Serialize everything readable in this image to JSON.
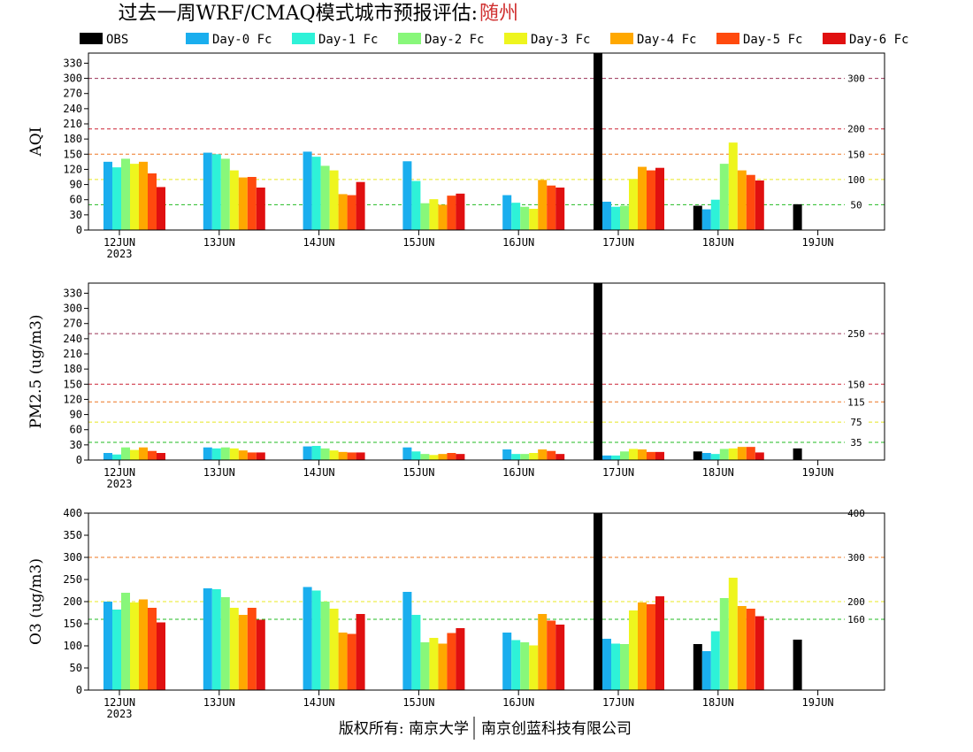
{
  "header": {
    "title_main": "过去一周WRF/CMAQ模式城市预报评估:",
    "title_city": "随州",
    "title_city_color": "#d03030"
  },
  "footer": {
    "left": "版权所有: 南京大学",
    "right": "南京创蓝科技有限公司"
  },
  "chart_data": [
    {
      "type": "bar",
      "ylabel": "AQI",
      "ylim": [
        0,
        350
      ],
      "yticks": [
        0,
        30,
        60,
        90,
        120,
        150,
        180,
        210,
        240,
        270,
        300,
        330
      ],
      "x_labels": [
        "12JUN",
        "13JUN",
        "14JUN",
        "15JUN",
        "16JUN",
        "17JUN",
        "18JUN",
        "19JUN"
      ],
      "x_sub": "2023",
      "legend": [
        "OBS",
        "Day-0 Fc",
        "Day-1 Fc",
        "Day-2 Fc",
        "Day-3 Fc",
        "Day-4 Fc",
        "Day-5 Fc",
        "Day-6 Fc"
      ],
      "colors": [
        "#000000",
        "#1aaeee",
        "#2ef2d8",
        "#88f77a",
        "#eef51e",
        "#ffa800",
        "#ff4a0e",
        "#e01010"
      ],
      "refs": [
        {
          "v": 300,
          "label": "300",
          "color": "#993355"
        },
        {
          "v": 200,
          "label": "200",
          "color": "#cc2233"
        },
        {
          "v": 150,
          "label": "150",
          "color": "#ee7722"
        },
        {
          "v": 100,
          "label": "100",
          "color": "#e8e822"
        },
        {
          "v": 50,
          "label": "50",
          "color": "#22bb22"
        }
      ],
      "series": [
        [
          null,
          null,
          null,
          null,
          null,
          350,
          48,
          51
        ],
        [
          135,
          153,
          155,
          136,
          69,
          56,
          41,
          null
        ],
        [
          124,
          150,
          145,
          97,
          54,
          46,
          60,
          null
        ],
        [
          141,
          141,
          127,
          53,
          46,
          48,
          131,
          null
        ],
        [
          131,
          118,
          118,
          61,
          42,
          101,
          173,
          null
        ],
        [
          135,
          104,
          71,
          50,
          99,
          125,
          118,
          null
        ],
        [
          112,
          105,
          69,
          68,
          88,
          118,
          109,
          null
        ],
        [
          85,
          84,
          95,
          72,
          84,
          123,
          98,
          null
        ]
      ]
    },
    {
      "type": "bar",
      "ylabel": "PM2.5 (ug/m3)",
      "ylim": [
        0,
        350
      ],
      "yticks": [
        0,
        30,
        60,
        90,
        120,
        150,
        180,
        210,
        240,
        270,
        300,
        330
      ],
      "x_labels": [
        "12JUN",
        "13JUN",
        "14JUN",
        "15JUN",
        "16JUN",
        "17JUN",
        "18JUN",
        "19JUN"
      ],
      "x_sub": "2023",
      "refs": [
        {
          "v": 250,
          "label": "250",
          "color": "#993355"
        },
        {
          "v": 150,
          "label": "150",
          "color": "#cc2233"
        },
        {
          "v": 115,
          "label": "115",
          "color": "#ee7722"
        },
        {
          "v": 75,
          "label": "75",
          "color": "#e8e822"
        },
        {
          "v": 35,
          "label": "35",
          "color": "#22bb22"
        }
      ],
      "series": [
        [
          null,
          null,
          null,
          null,
          null,
          350,
          17,
          23
        ],
        [
          14,
          25,
          27,
          25,
          21,
          9,
          14,
          null
        ],
        [
          11,
          23,
          28,
          17,
          12,
          9,
          12,
          null
        ],
        [
          25,
          25,
          23,
          12,
          12,
          17,
          22,
          null
        ],
        [
          20,
          23,
          19,
          10,
          14,
          22,
          23,
          null
        ],
        [
          25,
          19,
          16,
          12,
          21,
          21,
          26,
          null
        ],
        [
          18,
          15,
          15,
          14,
          18,
          16,
          26,
          null
        ],
        [
          14,
          15,
          15,
          12,
          12,
          16,
          15,
          null
        ]
      ]
    },
    {
      "type": "bar",
      "ylabel": "O3 (ug/m3)",
      "ylim": [
        0,
        400
      ],
      "yticks": [
        0,
        50,
        100,
        150,
        200,
        250,
        300,
        350,
        400
      ],
      "x_labels": [
        "12JUN",
        "13JUN",
        "14JUN",
        "15JUN",
        "16JUN",
        "17JUN",
        "18JUN",
        "19JUN"
      ],
      "x_sub": "2023",
      "refs": [
        {
          "v": 400,
          "label": "400",
          "color": "#cc2233"
        },
        {
          "v": 300,
          "label": "300",
          "color": "#ee7722"
        },
        {
          "v": 200,
          "label": "200",
          "color": "#e8e822"
        },
        {
          "v": 160,
          "label": "160",
          "color": "#22bb22"
        }
      ],
      "series": [
        [
          null,
          null,
          null,
          null,
          null,
          400,
          104,
          114
        ],
        [
          200,
          230,
          233,
          222,
          130,
          116,
          88,
          null
        ],
        [
          182,
          228,
          225,
          170,
          113,
          105,
          133,
          null
        ],
        [
          220,
          210,
          200,
          108,
          108,
          104,
          208,
          null
        ],
        [
          198,
          186,
          184,
          118,
          101,
          180,
          254,
          null
        ],
        [
          205,
          170,
          130,
          105,
          172,
          198,
          190,
          null
        ],
        [
          186,
          186,
          127,
          129,
          157,
          194,
          184,
          null
        ],
        [
          153,
          159,
          172,
          140,
          148,
          212,
          167,
          null
        ]
      ]
    }
  ]
}
